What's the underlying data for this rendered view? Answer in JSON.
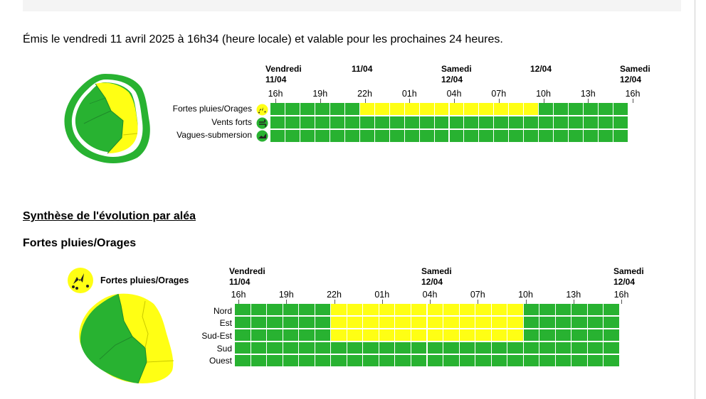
{
  "header": {
    "issued_text": "Émis le vendredi 11 avril 2025 à 16h34 (heure locale) et valable pour les prochaines 24 heures."
  },
  "colors": {
    "green": "#28b231",
    "yellow": "#ffff14",
    "grid_line": "#1f8a2a"
  },
  "overview": {
    "date_headers": [
      {
        "day": "Vendredi",
        "date": "11/04"
      },
      {
        "day": "",
        "date": "11/04"
      },
      {
        "day": "Samedi",
        "date": "12/04"
      },
      {
        "day": "",
        "date": "12/04"
      },
      {
        "day": "Samedi",
        "date": "12/04"
      }
    ],
    "hour_ticks": [
      "16h",
      "19h",
      "22h",
      "01h",
      "04h",
      "07h",
      "10h",
      "13h",
      "16h"
    ],
    "rows": [
      {
        "label": "Fortes pluies/Orages",
        "icon": "thunderstorm-icon",
        "yellow_from_hour_index": 6,
        "yellow_to_hour_index": 18
      },
      {
        "label": "Vents forts",
        "icon": "wind-icon",
        "yellow_from_hour_index": null,
        "yellow_to_hour_index": null
      },
      {
        "label": "Vagues-submersion",
        "icon": "wave-icon",
        "yellow_from_hour_index": null,
        "yellow_to_hour_index": null
      }
    ],
    "hours_total": 24
  },
  "synthese": {
    "title": "Synthèse de l'évolution par aléa"
  },
  "hazard_section": {
    "title": "Fortes pluies/Orages",
    "legend_label": "Fortes pluies/Orages",
    "legend_icon": "thunderstorm-icon",
    "date_headers": [
      {
        "day": "Vendredi",
        "date": "11/04"
      },
      {
        "day": "Samedi",
        "date": "12/04"
      },
      {
        "day": "Samedi",
        "date": "12/04"
      }
    ],
    "hour_ticks": [
      "16h",
      "19h",
      "22h",
      "01h",
      "04h",
      "07h",
      "10h",
      "13h",
      "16h"
    ],
    "rows": [
      {
        "label": "Nord",
        "yellow_from_hour_index": 6,
        "yellow_to_hour_index": 18
      },
      {
        "label": "Est",
        "yellow_from_hour_index": 6,
        "yellow_to_hour_index": 18
      },
      {
        "label": "Sud-Est",
        "yellow_from_hour_index": 6,
        "yellow_to_hour_index": 18
      },
      {
        "label": "Sud",
        "yellow_from_hour_index": null,
        "yellow_to_hour_index": null
      },
      {
        "label": "Ouest",
        "yellow_from_hour_index": null,
        "yellow_to_hour_index": null
      }
    ],
    "hours_total": 24
  }
}
